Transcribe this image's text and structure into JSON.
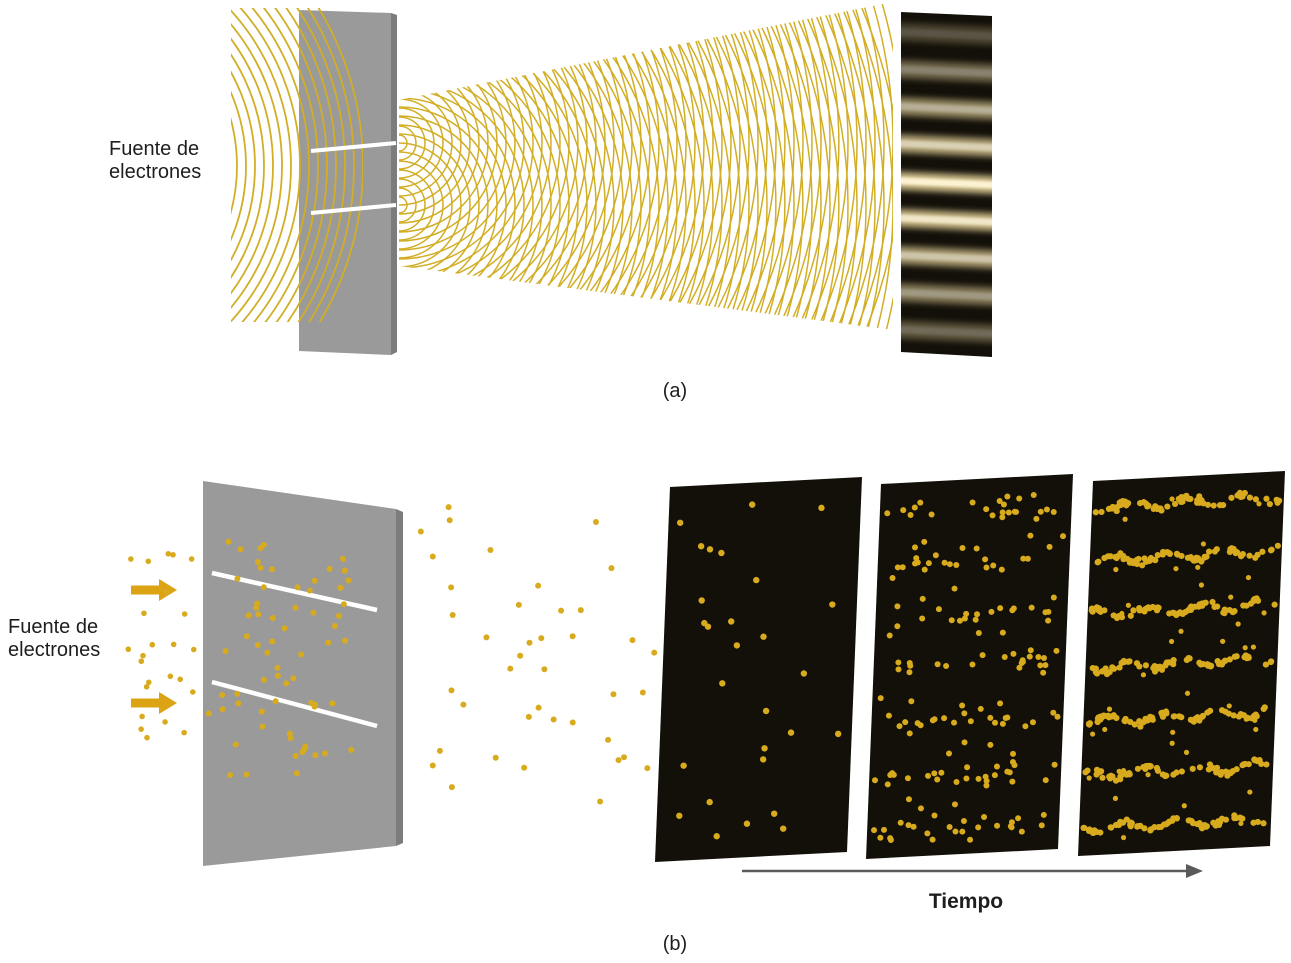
{
  "labels": {
    "source_a_line1": "Fuente de",
    "source_a_line2": "electrones",
    "source_b_line1": "Fuente de",
    "source_b_line2": "electrones",
    "caption_a": "(a)",
    "caption_b": "(b)",
    "time": "Tiempo"
  },
  "colors": {
    "wave": "#d2ae25",
    "dot": "#d8ab1e",
    "barrier": "#9a9a9a",
    "barrier_edge": "#7c7c7c",
    "screen": "#131009",
    "slit": "#ffffff",
    "arrow": "#dca414",
    "time_arrow": "#5a5a5a",
    "fringe_glow": "#cfbe8a",
    "fringe_core": "#fdf3d3",
    "text": "#1e1e1e"
  },
  "diagram": {
    "panel_a": {
      "incoming_wave_count": 15,
      "incoming_wave_spacing": 9,
      "slit_wave_count": 56,
      "slit_wave_spacing": 9,
      "fringe_count": 9,
      "slit_count": 2
    },
    "panel_b": {
      "band_count": 7,
      "pre_barrier_dots": 24,
      "on_barrier_dots": 66,
      "mid_dots": 40,
      "screen1_dots": 28,
      "screen2_band_dots": 16,
      "screen2_noise_dots": 68,
      "screen3_band_dots": 68,
      "screen3_noise_dots": 44
    }
  }
}
